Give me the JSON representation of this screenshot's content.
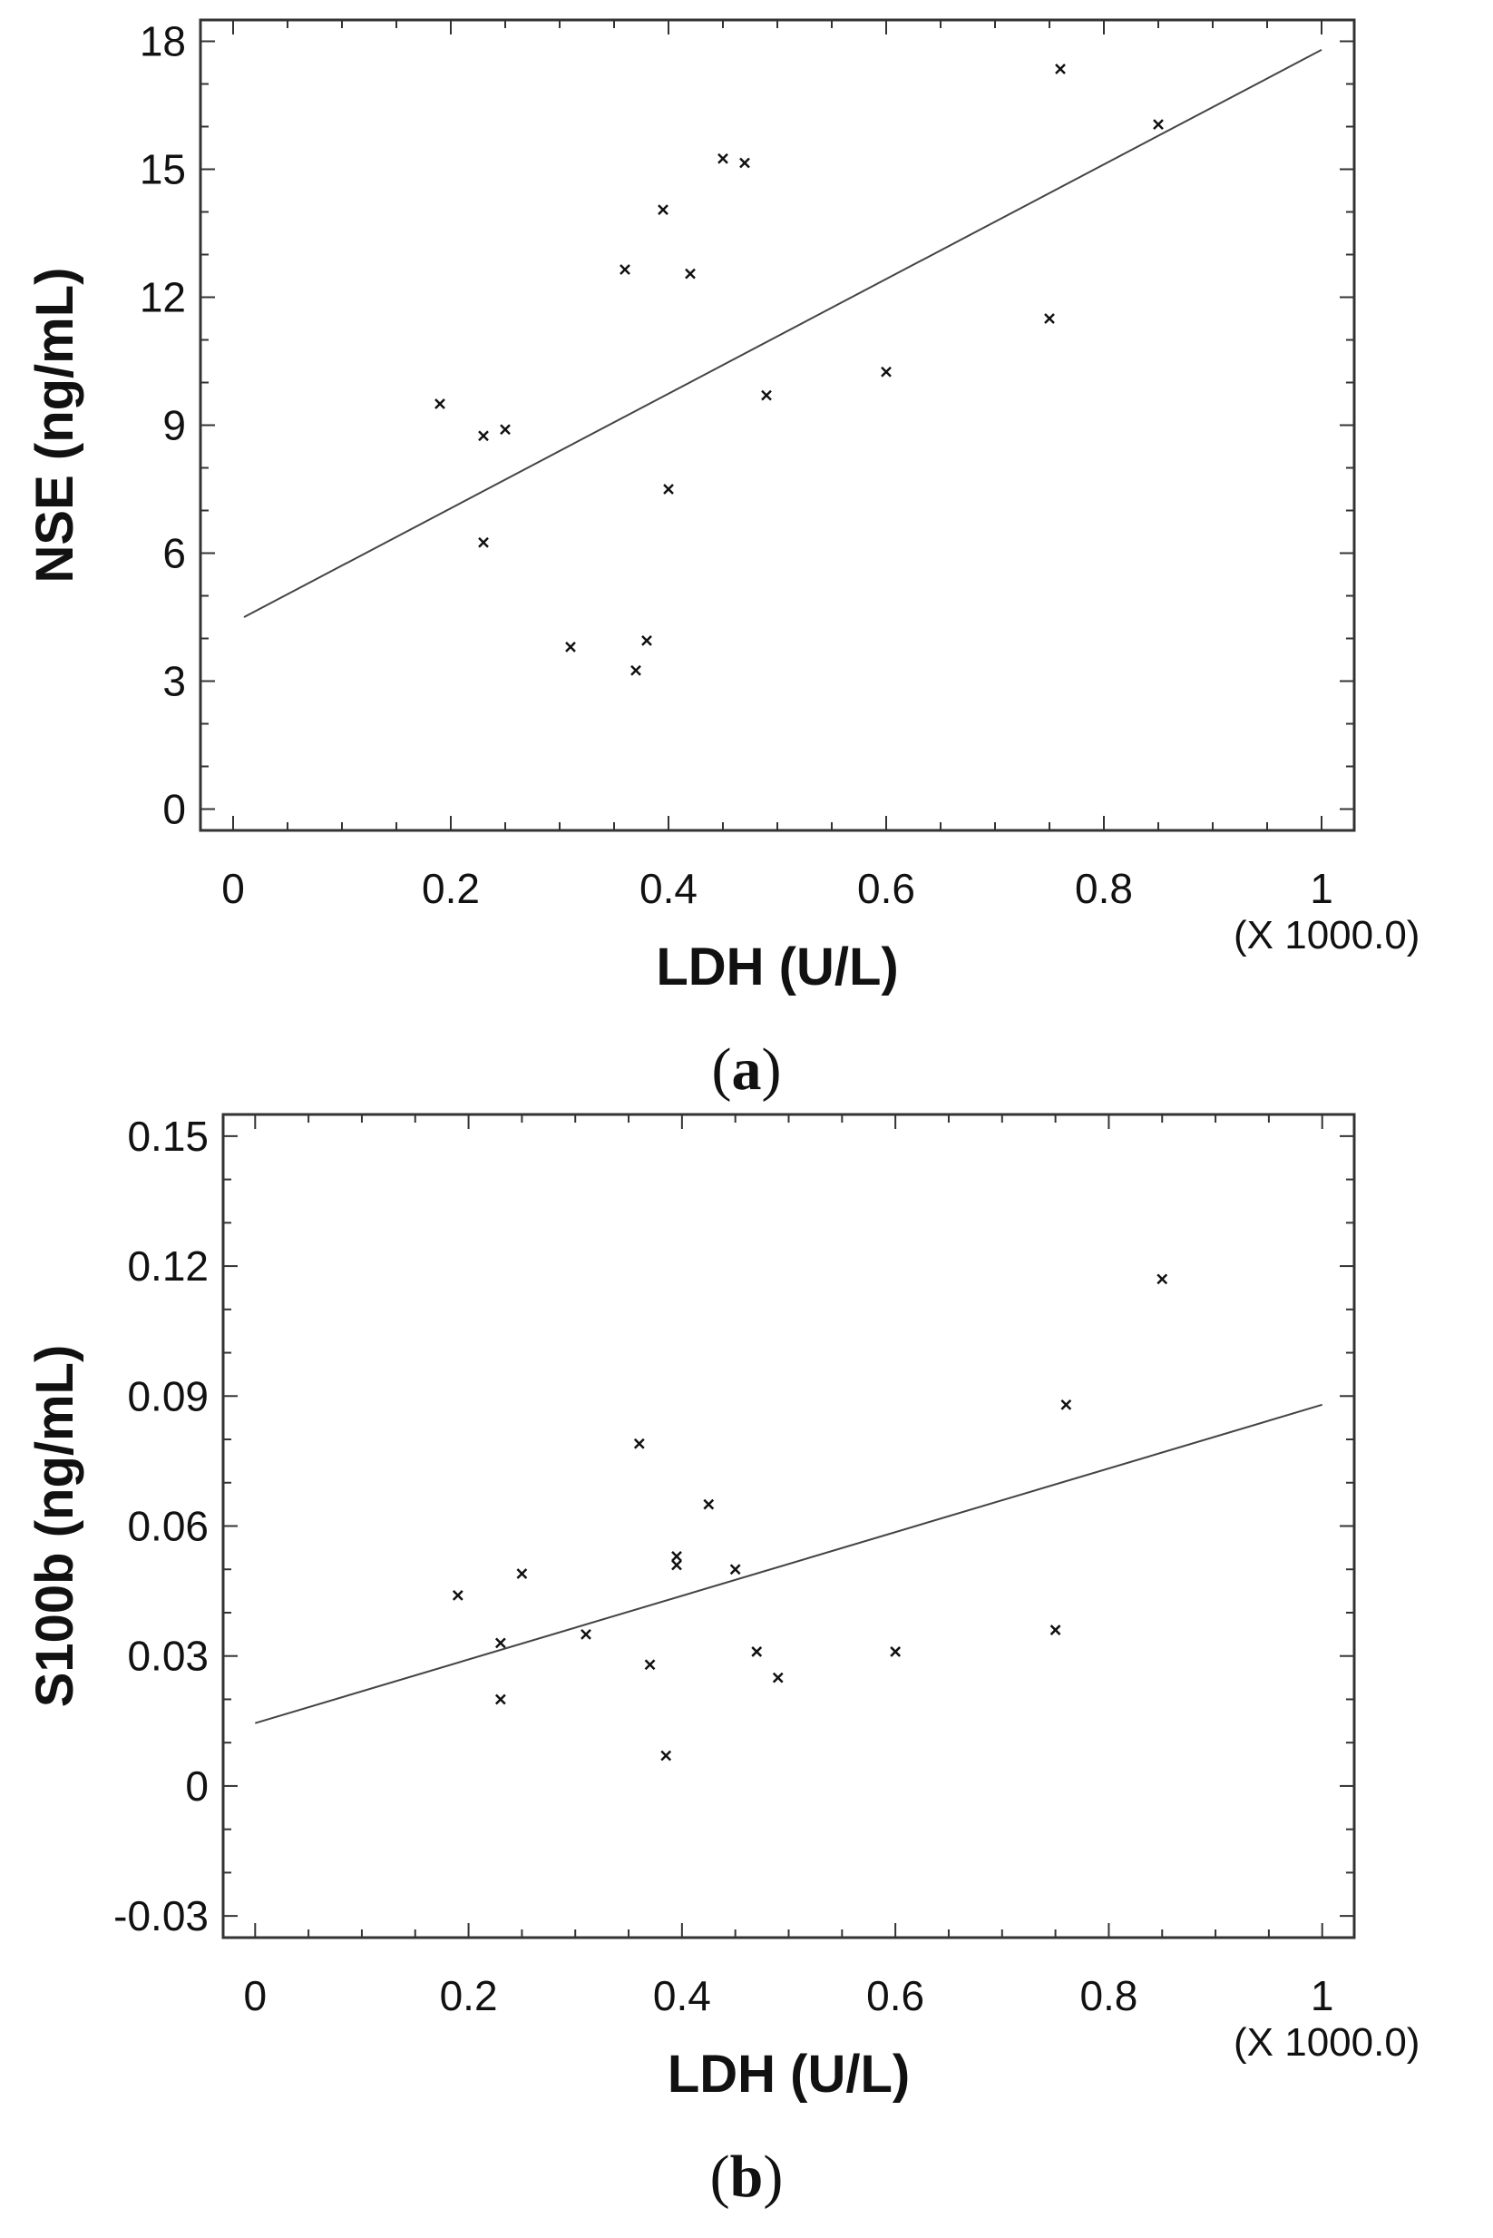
{
  "chart_data": [
    {
      "type": "scatter",
      "xlabel": "LDH (U/L)",
      "ylabel": "NSE (ng/mL)",
      "x_multiplier": "(X 1000.0)",
      "panel_label": "(a)",
      "panel_letter": "a",
      "xlim": [
        -0.03,
        1.03
      ],
      "ylim": [
        -0.5,
        18.5
      ],
      "xticks": [
        0,
        0.2,
        0.4,
        0.6,
        0.8,
        1
      ],
      "xtick_labels": [
        "0",
        "0.2",
        "0.4",
        "0.6",
        "0.8",
        "1"
      ],
      "yticks": [
        0,
        3,
        6,
        9,
        12,
        15,
        18
      ],
      "ytick_labels": [
        "0",
        "3",
        "6",
        "9",
        "12",
        "15",
        "18"
      ],
      "grid": false,
      "points": [
        {
          "x": 0.19,
          "y": 9.5
        },
        {
          "x": 0.23,
          "y": 8.75
        },
        {
          "x": 0.25,
          "y": 8.9
        },
        {
          "x": 0.23,
          "y": 6.25
        },
        {
          "x": 0.31,
          "y": 3.8
        },
        {
          "x": 0.36,
          "y": 12.65
        },
        {
          "x": 0.37,
          "y": 3.25
        },
        {
          "x": 0.38,
          "y": 3.95
        },
        {
          "x": 0.395,
          "y": 14.05
        },
        {
          "x": 0.4,
          "y": 7.5
        },
        {
          "x": 0.42,
          "y": 12.55
        },
        {
          "x": 0.45,
          "y": 15.25
        },
        {
          "x": 0.47,
          "y": 15.15
        },
        {
          "x": 0.49,
          "y": 9.7
        },
        {
          "x": 0.6,
          "y": 10.25
        },
        {
          "x": 0.75,
          "y": 11.5
        },
        {
          "x": 0.76,
          "y": 17.35
        },
        {
          "x": 0.85,
          "y": 16.05
        }
      ],
      "fit_line": {
        "x": [
          0.01,
          1.0
        ],
        "y": [
          4.5,
          17.8
        ]
      }
    },
    {
      "type": "scatter",
      "xlabel": "LDH (U/L)",
      "ylabel": "S100b (ng/mL)",
      "x_multiplier": "(X 1000.0)",
      "panel_label": "(b)",
      "panel_letter": "b",
      "xlim": [
        -0.03,
        1.03
      ],
      "ylim": [
        -0.035,
        0.155
      ],
      "xticks": [
        0,
        0.2,
        0.4,
        0.6,
        0.8,
        1
      ],
      "xtick_labels": [
        "0",
        "0.2",
        "0.4",
        "0.6",
        "0.8",
        "1"
      ],
      "yticks": [
        -0.03,
        0,
        0.03,
        0.06,
        0.09,
        0.12,
        0.15
      ],
      "ytick_labels": [
        "-0.03",
        "0",
        "0.03",
        "0.06",
        "0.09",
        "0.12",
        "0.15"
      ],
      "grid": false,
      "points": [
        {
          "x": 0.19,
          "y": 0.044
        },
        {
          "x": 0.23,
          "y": 0.033
        },
        {
          "x": 0.23,
          "y": 0.02
        },
        {
          "x": 0.25,
          "y": 0.049
        },
        {
          "x": 0.31,
          "y": 0.035
        },
        {
          "x": 0.36,
          "y": 0.079
        },
        {
          "x": 0.37,
          "y": 0.028
        },
        {
          "x": 0.385,
          "y": 0.007
        },
        {
          "x": 0.395,
          "y": 0.051
        },
        {
          "x": 0.395,
          "y": 0.053
        },
        {
          "x": 0.425,
          "y": 0.065
        },
        {
          "x": 0.45,
          "y": 0.05
        },
        {
          "x": 0.47,
          "y": 0.031
        },
        {
          "x": 0.49,
          "y": 0.025
        },
        {
          "x": 0.6,
          "y": 0.031
        },
        {
          "x": 0.75,
          "y": 0.036
        },
        {
          "x": 0.76,
          "y": 0.088
        },
        {
          "x": 0.85,
          "y": 0.117
        }
      ],
      "fit_line": {
        "x": [
          0.0,
          1.0
        ],
        "y": [
          0.0145,
          0.088
        ]
      }
    }
  ]
}
